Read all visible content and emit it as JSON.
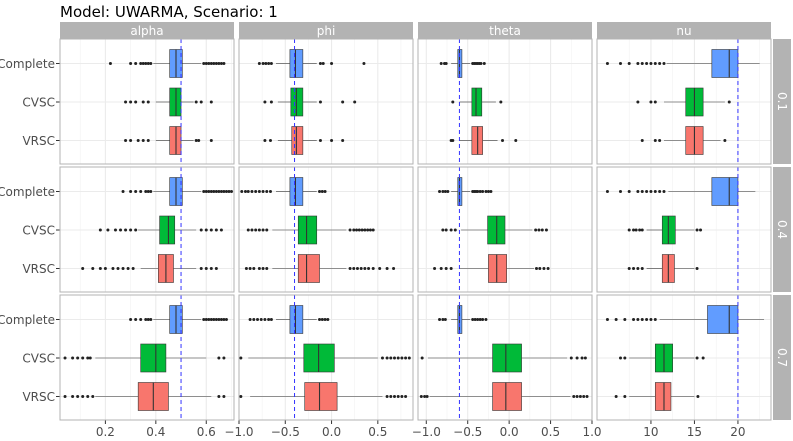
{
  "chart_data": {
    "type": "boxplot",
    "title": "Model: UWARMA, Scenario: 1",
    "xlabel": "",
    "ylabel": "",
    "grid": true,
    "legend": "none",
    "colors": {
      "Complete": "#619CFF",
      "CVSC": "#00BA38",
      "VRSC": "#F8766D",
      "reference_line": "#3333ff",
      "strip_bg": "#b3b3b3",
      "panel_border": "#b3b3b3",
      "grid": "#ebebeb"
    },
    "methods": [
      "Complete",
      "CVSC",
      "VRSC"
    ],
    "row_strips": [
      "0.1",
      "0.4",
      "0.7"
    ],
    "columns": [
      {
        "label": "alpha",
        "xlim": [
          0.02,
          0.71
        ],
        "ticks": [
          0.2,
          0.4,
          0.6
        ],
        "tick_labels": [
          "0.2",
          "0.4",
          "0.6"
        ],
        "reference": 0.5
      },
      {
        "label": "phi",
        "xlim": [
          -1.0,
          0.88
        ],
        "ticks": [
          -1.0,
          -0.5,
          0.0,
          0.5
        ],
        "tick_labels": [
          "−1.0",
          "−0.5",
          "0.0",
          "0.5"
        ],
        "reference": -0.4
      },
      {
        "label": "theta",
        "xlim": [
          -1.1,
          1.0
        ],
        "ticks": [
          -1.0,
          -0.5,
          0.0,
          0.5,
          1.0
        ],
        "tick_labels": [
          "−1.0",
          "−0.5",
          "0.0",
          "0.5",
          "1.0"
        ],
        "reference": -0.6
      },
      {
        "label": "nu",
        "xlim": [
          3.8,
          23.8
        ],
        "ticks": [
          10,
          15,
          20
        ],
        "tick_labels": [
          "10",
          "15",
          "20"
        ],
        "reference": 20
      }
    ],
    "panels": [
      [
        [
          {
            "q1": 0.455,
            "median": 0.48,
            "q3": 0.505,
            "lw": 0.39,
            "uw": 0.58,
            "outliers": [
              0.22,
              0.3,
              0.32,
              0.34,
              0.35,
              0.36,
              0.37,
              0.38,
              0.59,
              0.6,
              0.61,
              0.62,
              0.63,
              0.64,
              0.65,
              0.66,
              0.67
            ]
          },
          {
            "q1": 0.455,
            "median": 0.48,
            "q3": 0.5,
            "lw": 0.4,
            "uw": 0.55,
            "outliers": [
              0.28,
              0.3,
              0.32,
              0.35,
              0.37,
              0.56,
              0.58,
              0.62
            ]
          },
          {
            "q1": 0.455,
            "median": 0.48,
            "q3": 0.5,
            "lw": 0.4,
            "uw": 0.55,
            "outliers": [
              0.28,
              0.3,
              0.33,
              0.35,
              0.37,
              0.56,
              0.57,
              0.62
            ]
          }
        ],
        [
          {
            "q1": -0.45,
            "median": -0.39,
            "q3": -0.31,
            "lw": -0.6,
            "uw": -0.16,
            "outliers": [
              -0.78,
              -0.74,
              -0.71,
              -0.68,
              -0.65,
              -0.12,
              -0.09,
              0.0,
              0.35
            ]
          },
          {
            "q1": -0.44,
            "median": -0.38,
            "q3": -0.31,
            "lw": -0.58,
            "uw": -0.16,
            "outliers": [
              -0.72,
              -0.65,
              -0.12,
              0.12,
              0.25
            ]
          },
          {
            "q1": -0.43,
            "median": -0.38,
            "q3": -0.31,
            "lw": -0.58,
            "uw": -0.16,
            "outliers": [
              -0.72,
              -0.66,
              -0.12,
              0.0,
              0.12
            ]
          }
        ],
        [
          {
            "q1": -0.62,
            "median": -0.6,
            "q3": -0.57,
            "lw": -0.7,
            "uw": -0.47,
            "outliers": [
              -0.82,
              -0.78,
              -0.76,
              -0.44,
              -0.42,
              -0.4,
              -0.38,
              -0.36,
              -0.34,
              -0.3
            ]
          },
          {
            "q1": -0.45,
            "median": -0.4,
            "q3": -0.33,
            "lw": -0.6,
            "uw": -0.16,
            "outliers": [
              -0.68,
              -0.1
            ]
          },
          {
            "q1": -0.45,
            "median": -0.38,
            "q3": -0.32,
            "lw": -0.6,
            "uw": -0.14,
            "outliers": [
              -0.7,
              -0.68,
              -0.08,
              0.08
            ]
          }
        ],
        [
          {
            "q1": 17.0,
            "median": 19.0,
            "q3": 20.0,
            "lw": 11.8,
            "uw": 22.5,
            "outliers": [
              5.0,
              6.5,
              7.5,
              8.5,
              9.0,
              9.5,
              10.0,
              10.5,
              11.0,
              11.5
            ]
          },
          {
            "q1": 14.0,
            "median": 15.0,
            "q3": 16.0,
            "lw": 11.5,
            "uw": 18.5,
            "outliers": [
              8.5,
              10.0,
              10.5,
              19.0
            ]
          },
          {
            "q1": 14.0,
            "median": 15.0,
            "q3": 16.0,
            "lw": 11.5,
            "uw": 18.0,
            "outliers": [
              9.0,
              10.5,
              11.0,
              18.5
            ]
          }
        ]
      ],
      [
        [
          {
            "q1": 0.455,
            "median": 0.48,
            "q3": 0.505,
            "lw": 0.39,
            "uw": 0.58,
            "outliers": [
              0.27,
              0.3,
              0.32,
              0.34,
              0.36,
              0.37,
              0.38,
              0.59,
              0.6,
              0.61,
              0.62,
              0.63,
              0.64,
              0.65,
              0.66,
              0.67,
              0.68,
              0.69,
              0.7
            ]
          },
          {
            "q1": 0.415,
            "median": 0.45,
            "q3": 0.475,
            "lw": 0.33,
            "uw": 0.56,
            "outliers": [
              0.18,
              0.21,
              0.24,
              0.26,
              0.28,
              0.3,
              0.32,
              0.58,
              0.6,
              0.62,
              0.64,
              0.66
            ]
          },
          {
            "q1": 0.41,
            "median": 0.44,
            "q3": 0.47,
            "lw": 0.34,
            "uw": 0.56,
            "outliers": [
              0.11,
              0.15,
              0.18,
              0.2,
              0.23,
              0.25,
              0.27,
              0.29,
              0.31,
              0.58,
              0.6,
              0.62,
              0.64
            ]
          }
        ],
        [
          {
            "q1": -0.45,
            "median": -0.39,
            "q3": -0.31,
            "lw": -0.6,
            "uw": -0.16,
            "outliers": [
              -0.97,
              -0.93,
              -0.9,
              -0.86,
              -0.82,
              -0.78,
              -0.74,
              -0.7,
              -0.66,
              -0.13,
              -0.1,
              -0.07
            ]
          },
          {
            "q1": -0.36,
            "median": -0.27,
            "q3": -0.16,
            "lw": -0.64,
            "uw": 0.16,
            "outliers": [
              -0.9,
              -0.86,
              -0.82,
              -0.78,
              -0.74,
              -0.7,
              0.2,
              0.24,
              0.27,
              0.3,
              0.33,
              0.36,
              0.39,
              0.42,
              0.45
            ]
          },
          {
            "q1": -0.36,
            "median": -0.27,
            "q3": -0.13,
            "lw": -0.64,
            "uw": 0.16,
            "outliers": [
              -0.92,
              -0.88,
              -0.84,
              -0.78,
              -0.74,
              -0.7,
              0.2,
              0.24,
              0.28,
              0.32,
              0.36,
              0.4,
              0.45,
              0.52,
              0.6,
              0.67
            ]
          }
        ],
        [
          {
            "q1": -0.62,
            "median": -0.6,
            "q3": -0.57,
            "lw": -0.7,
            "uw": -0.47,
            "outliers": [
              -0.84,
              -0.8,
              -0.77,
              -0.74,
              -0.44,
              -0.42,
              -0.4,
              -0.38,
              -0.35,
              -0.32,
              -0.28,
              -0.25,
              -0.22
            ]
          },
          {
            "q1": -0.26,
            "median": -0.15,
            "q3": -0.05,
            "lw": -0.58,
            "uw": 0.28,
            "outliers": [
              -0.8,
              -0.76,
              -0.7,
              -0.65,
              0.32,
              0.36,
              0.4,
              0.45
            ]
          },
          {
            "q1": -0.25,
            "median": -0.15,
            "q3": -0.03,
            "lw": -0.6,
            "uw": 0.3,
            "outliers": [
              -0.9,
              -0.82,
              -0.76,
              -0.7,
              0.33,
              0.37,
              0.42,
              0.47
            ]
          }
        ],
        [
          {
            "q1": 17.0,
            "median": 19.0,
            "q3": 20.0,
            "lw": 12.0,
            "uw": 22.0,
            "outliers": [
              5.0,
              6.5,
              7.5,
              8.5,
              9.0,
              9.5,
              10.0,
              10.5,
              11.0,
              11.5
            ]
          },
          {
            "q1": 11.3,
            "median": 12.0,
            "q3": 12.8,
            "lw": 9.5,
            "uw": 15.0,
            "outliers": [
              7.5,
              8.0,
              8.3,
              8.7,
              9.0,
              15.3,
              15.7
            ]
          },
          {
            "q1": 11.3,
            "median": 12.0,
            "q3": 12.7,
            "lw": 9.5,
            "uw": 15.0,
            "outliers": [
              7.5,
              8.0,
              8.5,
              9.0,
              15.3
            ]
          }
        ]
      ],
      [
        [
          {
            "q1": 0.455,
            "median": 0.48,
            "q3": 0.505,
            "lw": 0.39,
            "uw": 0.58,
            "outliers": [
              0.3,
              0.32,
              0.34,
              0.36,
              0.37,
              0.38,
              0.59,
              0.6,
              0.61,
              0.62,
              0.63,
              0.64,
              0.65,
              0.66,
              0.67,
              0.68
            ]
          },
          {
            "q1": 0.34,
            "median": 0.4,
            "q3": 0.44,
            "lw": 0.16,
            "uw": 0.6,
            "outliers": [
              0.04,
              0.07,
              0.09,
              0.11,
              0.13,
              0.14,
              0.65,
              0.67
            ]
          },
          {
            "q1": 0.33,
            "median": 0.39,
            "q3": 0.45,
            "lw": 0.16,
            "uw": 0.62,
            "outliers": [
              0.04,
              0.07,
              0.09,
              0.11,
              0.13,
              0.15,
              0.65,
              0.67
            ]
          }
        ],
        [
          {
            "q1": -0.45,
            "median": -0.39,
            "q3": -0.31,
            "lw": -0.6,
            "uw": -0.16,
            "outliers": [
              -0.88,
              -0.84,
              -0.8,
              -0.76,
              -0.72,
              -0.68,
              -0.65,
              -0.13,
              -0.1,
              -0.07,
              -0.04
            ]
          },
          {
            "q1": -0.3,
            "median": -0.14,
            "q3": 0.03,
            "lw": -0.9,
            "uw": 0.5,
            "outliers": [
              -0.98,
              0.55,
              0.6,
              0.64,
              0.68,
              0.72,
              0.76,
              0.8,
              0.84
            ]
          },
          {
            "q1": -0.29,
            "median": -0.13,
            "q3": 0.06,
            "lw": -0.88,
            "uw": 0.55,
            "outliers": [
              -0.98,
              0.6,
              0.64,
              0.68,
              0.72,
              0.76,
              0.8
            ]
          }
        ],
        [
          {
            "q1": -0.62,
            "median": -0.6,
            "q3": -0.57,
            "lw": -0.7,
            "uw": -0.47,
            "outliers": [
              -0.84,
              -0.8,
              -0.77,
              -0.44,
              -0.41,
              -0.38,
              -0.35,
              -0.32,
              -0.28
            ]
          },
          {
            "q1": -0.2,
            "median": -0.04,
            "q3": 0.15,
            "lw": -0.98,
            "uw": 0.7,
            "outliers": [
              -1.05,
              0.75,
              0.82,
              0.88,
              0.92
            ]
          },
          {
            "q1": -0.2,
            "median": -0.04,
            "q3": 0.15,
            "lw": -0.96,
            "uw": 0.74,
            "outliers": [
              -1.06,
              -1.02,
              -0.99,
              0.78,
              0.82,
              0.86,
              0.9,
              0.94
            ]
          }
        ],
        [
          {
            "q1": 16.5,
            "median": 19.0,
            "q3": 20.0,
            "lw": 11.0,
            "uw": 23.0,
            "outliers": [
              5.0,
              6.0,
              7.0,
              8.0,
              8.5,
              9.0,
              9.5,
              10.0,
              10.5
            ]
          },
          {
            "q1": 10.5,
            "median": 11.5,
            "q3": 12.5,
            "lw": 7.5,
            "uw": 15.0,
            "outliers": [
              6.5,
              7.0,
              15.3,
              16.0
            ]
          },
          {
            "q1": 10.5,
            "median": 11.5,
            "q3": 12.3,
            "lw": 7.5,
            "uw": 15.0,
            "outliers": [
              6.0,
              7.0,
              15.4
            ]
          }
        ]
      ]
    ]
  }
}
